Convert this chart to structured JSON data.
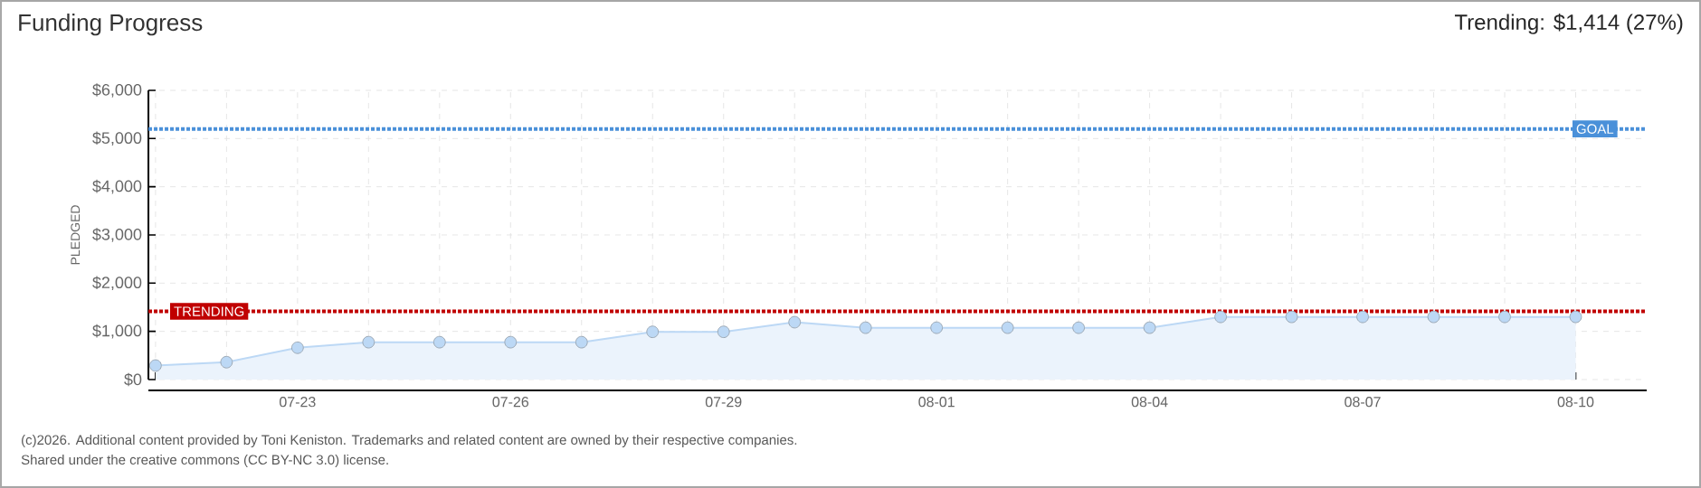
{
  "chart_data": {
    "type": "area",
    "title": "Funding Progress",
    "subtitle": "Trending: $1,414 (27%)",
    "ylabel": "PLEDGED",
    "categories": [
      null,
      null,
      "07-23",
      null,
      null,
      "07-26",
      null,
      null,
      "07-29",
      null,
      null,
      "08-01",
      null,
      null,
      "08-04",
      null,
      null,
      "08-07",
      null,
      null,
      "08-10"
    ],
    "series": [
      {
        "color": "#bcd8f5",
        "values": [
          290,
          360,
          660,
          775,
          775,
          775,
          775,
          990,
          990,
          1190,
          1075,
          1075,
          1075,
          1075,
          1075,
          1300,
          1300,
          1300,
          1300,
          1300,
          1300
        ]
      }
    ],
    "ylim": [
      0,
      6000
    ],
    "yticks": [
      {
        "value": 0,
        "label": "$0"
      },
      {
        "value": 1000,
        "label": "$1,000"
      },
      {
        "value": 2000,
        "label": "$2,000"
      },
      {
        "value": 3000,
        "label": "$3,000"
      },
      {
        "value": 4000,
        "label": "$4,000"
      },
      {
        "value": 5000,
        "label": "$5,000"
      },
      {
        "value": 6000,
        "label": "$6,000"
      }
    ],
    "ref_lines": [
      {
        "axis": "y",
        "value": 5200,
        "label": "GOAL",
        "color": "#4a90d9",
        "line_style": "dotted"
      },
      {
        "axis": "y",
        "value": 1414,
        "label": "TRENDING",
        "color": "#c00000",
        "line_style": "dotted"
      }
    ],
    "grid": true,
    "marker": "circle",
    "annotations": [
      "(c)2026. Additional content provided by Toni Keniston. Trademarks and related content are owned by their respective companies.",
      "Shared under the creative commons (CC BY-NC 3.0) license."
    ]
  }
}
